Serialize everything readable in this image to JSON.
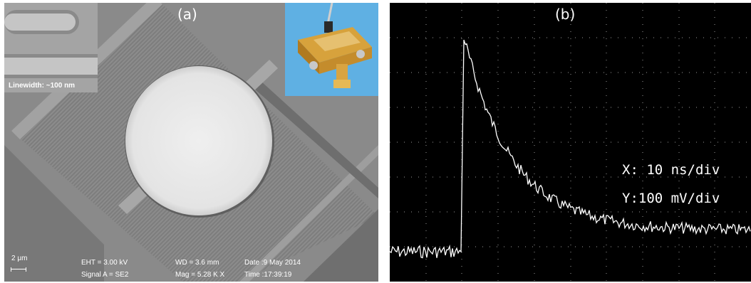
{
  "panel_a": {
    "label": "(a)",
    "inset_sem_caption": "Linewidth: ~100 nm",
    "scale_bar": "2 μm",
    "eht": "EHT = 3.00 kV",
    "signal": "Signal A = SE2",
    "wd": "WD = 3.6 mm",
    "mag": "Mag = 5.28 K X",
    "date": "Date :9 May 2014",
    "time": "Time :17:39:19"
  },
  "panel_b": {
    "label": "(b)",
    "x_scale": "X: 10 ns/div",
    "y_scale": "Y:100 mV/div",
    "trace_color": "#ffffff",
    "background_color": "#000000"
  }
}
